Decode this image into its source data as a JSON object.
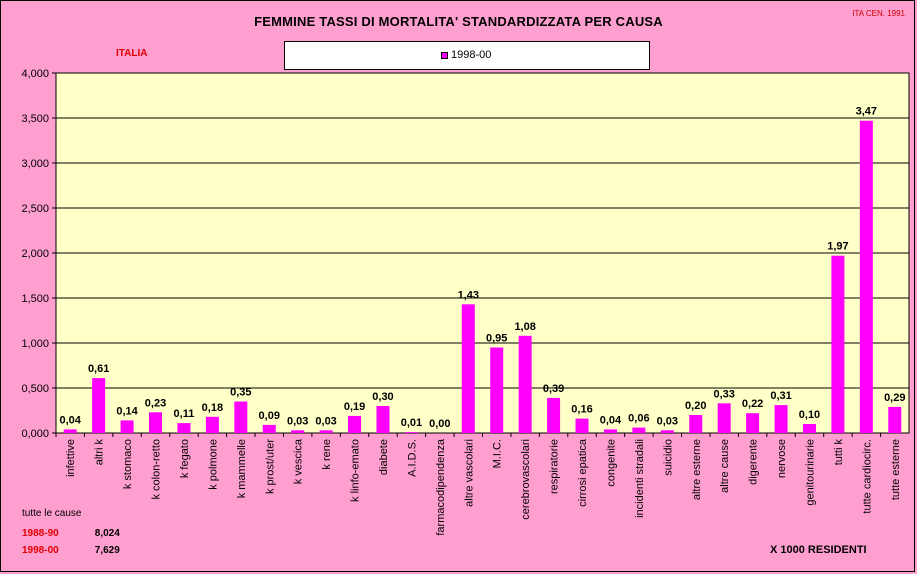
{
  "header": {
    "title": "FEMMINE TASSI DI MORTALITA' STANDARDIZZATA PER CAUSA",
    "corner_note": "ITA CEN. 1991",
    "region": "ITALIA",
    "unit": "X 1000 RESIDENTI"
  },
  "totals": {
    "heading": "tutte le cause",
    "rows": [
      {
        "period": "1988-90",
        "value": "8,024"
      },
      {
        "period": "1998-00",
        "value": "7,629"
      }
    ]
  },
  "colors": {
    "bar": "#ff00ff",
    "plot_background": "#ffffc8",
    "page_background": "#ff9fd0",
    "totals_label": "#e00000"
  },
  "chart_data": {
    "type": "bar",
    "title": "FEMMINE TASSI DI MORTALITA' STANDARDIZZATA PER CAUSA",
    "xlabel": "",
    "ylabel": "",
    "ylim": [
      0,
      4
    ],
    "yticks": [
      "0,000",
      "0,500",
      "1,000",
      "1,500",
      "2,000",
      "2,500",
      "3,000",
      "3,500",
      "4,000"
    ],
    "grid": true,
    "legend_position": "top",
    "categories": [
      "infettive",
      "altri k",
      "k stomaco",
      "k colon-retto",
      "k fegato",
      "k polmone",
      "k mammelle",
      "k prost/uter",
      "k vescica",
      "k rene",
      "k linfo-emato",
      "diabete",
      "A.I.D.S.",
      "farmacodipendenza",
      "altre vascolari",
      "M.I.C.",
      "cerebrovascolari",
      "respiratorie",
      "cirrosi epatica",
      "congenite",
      "incidenti stradali",
      "suicidio",
      "altre esterne",
      "altre cause",
      "digerente",
      "nervose",
      "genitourinarie",
      "tutti k",
      "tutte cardiocirc.",
      "tutte esterne"
    ],
    "series": [
      {
        "name": "1998-00",
        "values": [
          0.04,
          0.61,
          0.14,
          0.23,
          0.11,
          0.18,
          0.35,
          0.09,
          0.03,
          0.03,
          0.19,
          0.3,
          0.01,
          0.0,
          1.43,
          0.95,
          1.08,
          0.39,
          0.16,
          0.04,
          0.06,
          0.03,
          0.2,
          0.33,
          0.22,
          0.31,
          0.1,
          1.97,
          3.47,
          0.29
        ],
        "labels": [
          "0,04",
          "0,61",
          "0,14",
          "0,23",
          "0,11",
          "0,18",
          "0,35",
          "0,09",
          "0,03",
          "0,03",
          "0,19",
          "0,30",
          "0,01",
          "0,00",
          "1,43",
          "0,95",
          "1,08",
          "0,39",
          "0,16",
          "0,04",
          "0,06",
          "0,03",
          "0,20",
          "0,33",
          "0,22",
          "0,31",
          "0,10",
          "1,97",
          "3,47",
          "0,29"
        ]
      }
    ]
  }
}
